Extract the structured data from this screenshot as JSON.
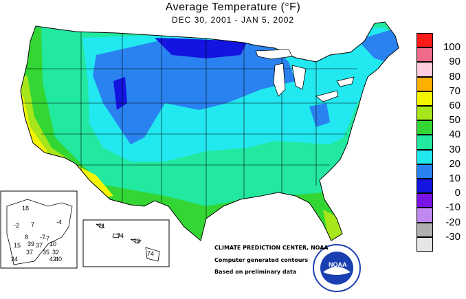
{
  "title": "Average Temperature (°F)",
  "subtitle": "DEC 30, 2001 - JAN  5, 2002",
  "legend": [
    {
      "label": "100",
      "color": "#ff1a1a"
    },
    {
      "label": "90",
      "color": "#f06a8a"
    },
    {
      "label": "80",
      "color": "#ffccdd"
    },
    {
      "label": "70",
      "color": "#ffb000"
    },
    {
      "label": "60",
      "color": "#f5f500"
    },
    {
      "label": "50",
      "color": "#a6e61a"
    },
    {
      "label": "40",
      "color": "#33d633"
    },
    {
      "label": "30",
      "color": "#22e8a0"
    },
    {
      "label": "20",
      "color": "#22e8f0"
    },
    {
      "label": "10",
      "color": "#2a82f0"
    },
    {
      "label": "0",
      "color": "#1414e0"
    },
    {
      "label": "-10",
      "color": "#7a14e6"
    },
    {
      "label": "-20",
      "color": "#c088f0"
    },
    {
      "label": "-30",
      "color": "#b0b0b0"
    },
    {
      "label": "",
      "color": "#e6e6e6"
    }
  ],
  "credits": {
    "line1": "CLIMATE PREDICTION CENTER, NOAA",
    "line2": "Computer generated contours",
    "line3": "Based on preliminary data"
  },
  "noaa_logo_text": "NOAA",
  "alaska_values": [
    "18",
    "-2",
    "7",
    "-4",
    "-7",
    "15",
    "39",
    "37",
    "10",
    "37",
    "35",
    "32",
    "34",
    "42",
    "40",
    "-7",
    "8"
  ],
  "hawaii_values": [
    "71",
    "74",
    "72",
    "74"
  ]
}
